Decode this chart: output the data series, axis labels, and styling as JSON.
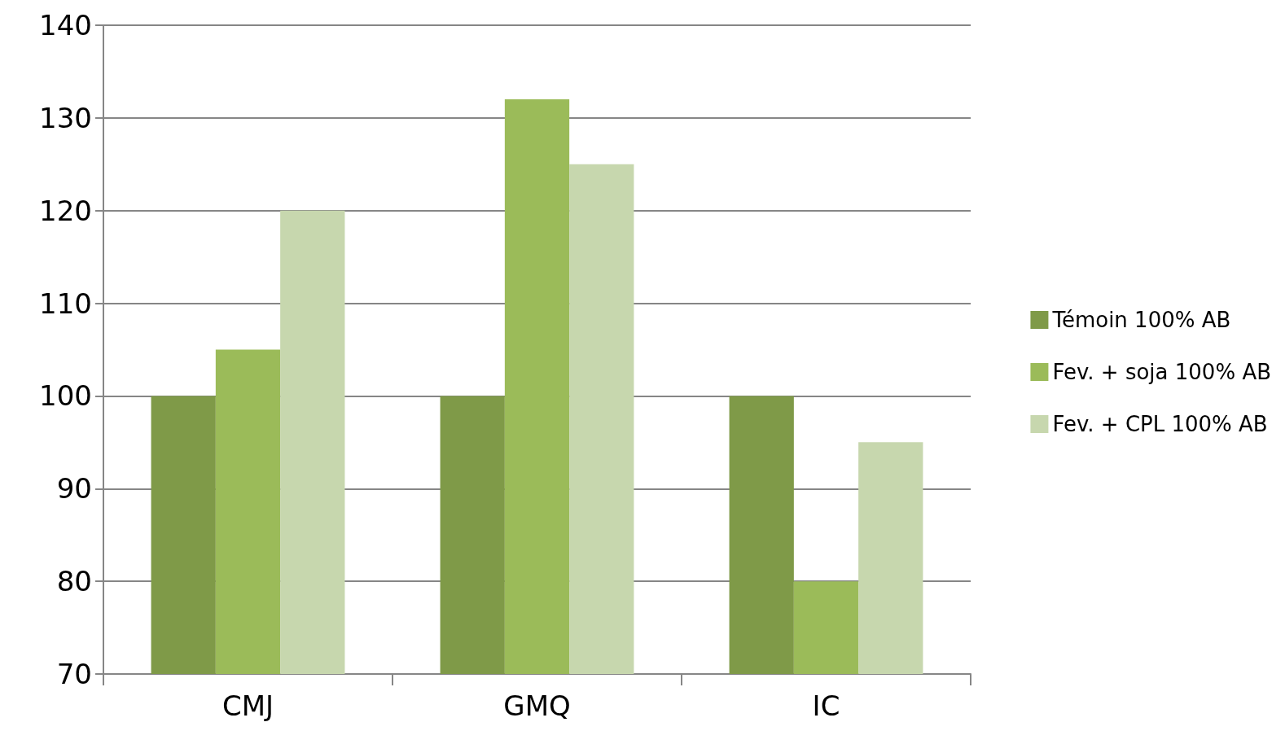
{
  "chart_data": {
    "type": "bar",
    "categories": [
      "CMJ",
      "GMQ",
      "IC"
    ],
    "series": [
      {
        "name": "Témoin 100% AB",
        "color": "#7f9a48",
        "values": [
          100,
          100,
          100
        ]
      },
      {
        "name": "Fev. + soja 100% AB",
        "color": "#9bbb59",
        "values": [
          105,
          132,
          80
        ]
      },
      {
        "name": "Fev. + CPL 100% AB",
        "color": "#c7d7ae",
        "values": [
          120,
          125,
          95
        ]
      }
    ],
    "ylim": [
      70,
      140
    ],
    "yticks": [
      70,
      80,
      90,
      100,
      110,
      120,
      130,
      140
    ],
    "grid": "y",
    "legend": "right"
  }
}
